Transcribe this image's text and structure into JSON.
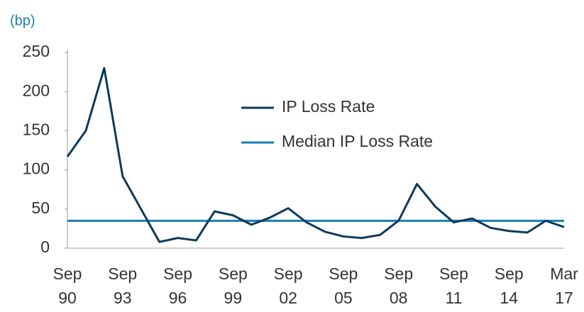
{
  "chart_data": {
    "type": "line",
    "unit_label": "(bp)",
    "categories": [
      "Sep 90",
      null,
      null,
      "Sep 93",
      null,
      null,
      "Sep 96",
      null,
      null,
      "Sep 99",
      null,
      null,
      "Sep 02",
      null,
      null,
      "Sep 05",
      null,
      null,
      "Sep 08",
      null,
      null,
      "Sep 11",
      null,
      null,
      "Sep 14",
      null,
      null,
      "Mar 17"
    ],
    "series": [
      {
        "name": "IP Loss Rate",
        "color": "#0d3a5c",
        "values": [
          117,
          150,
          230,
          92,
          50,
          8,
          13,
          10,
          47,
          42,
          30,
          39,
          51,
          33,
          21,
          15,
          13,
          17,
          35,
          82,
          53,
          33,
          38,
          26,
          22,
          20,
          35,
          27
        ]
      },
      {
        "name": "Median IP Loss Rate",
        "color": "#1a7fb5",
        "values": [
          35,
          35,
          35,
          35,
          35,
          35,
          35,
          35,
          35,
          35,
          35,
          35,
          35,
          35,
          35,
          35,
          35,
          35,
          35,
          35,
          35,
          35,
          35,
          35,
          35,
          35,
          35,
          35
        ]
      }
    ],
    "ylim": [
      0,
      250
    ],
    "yticks": [
      0,
      50,
      100,
      150,
      200,
      250
    ],
    "grid": false
  }
}
